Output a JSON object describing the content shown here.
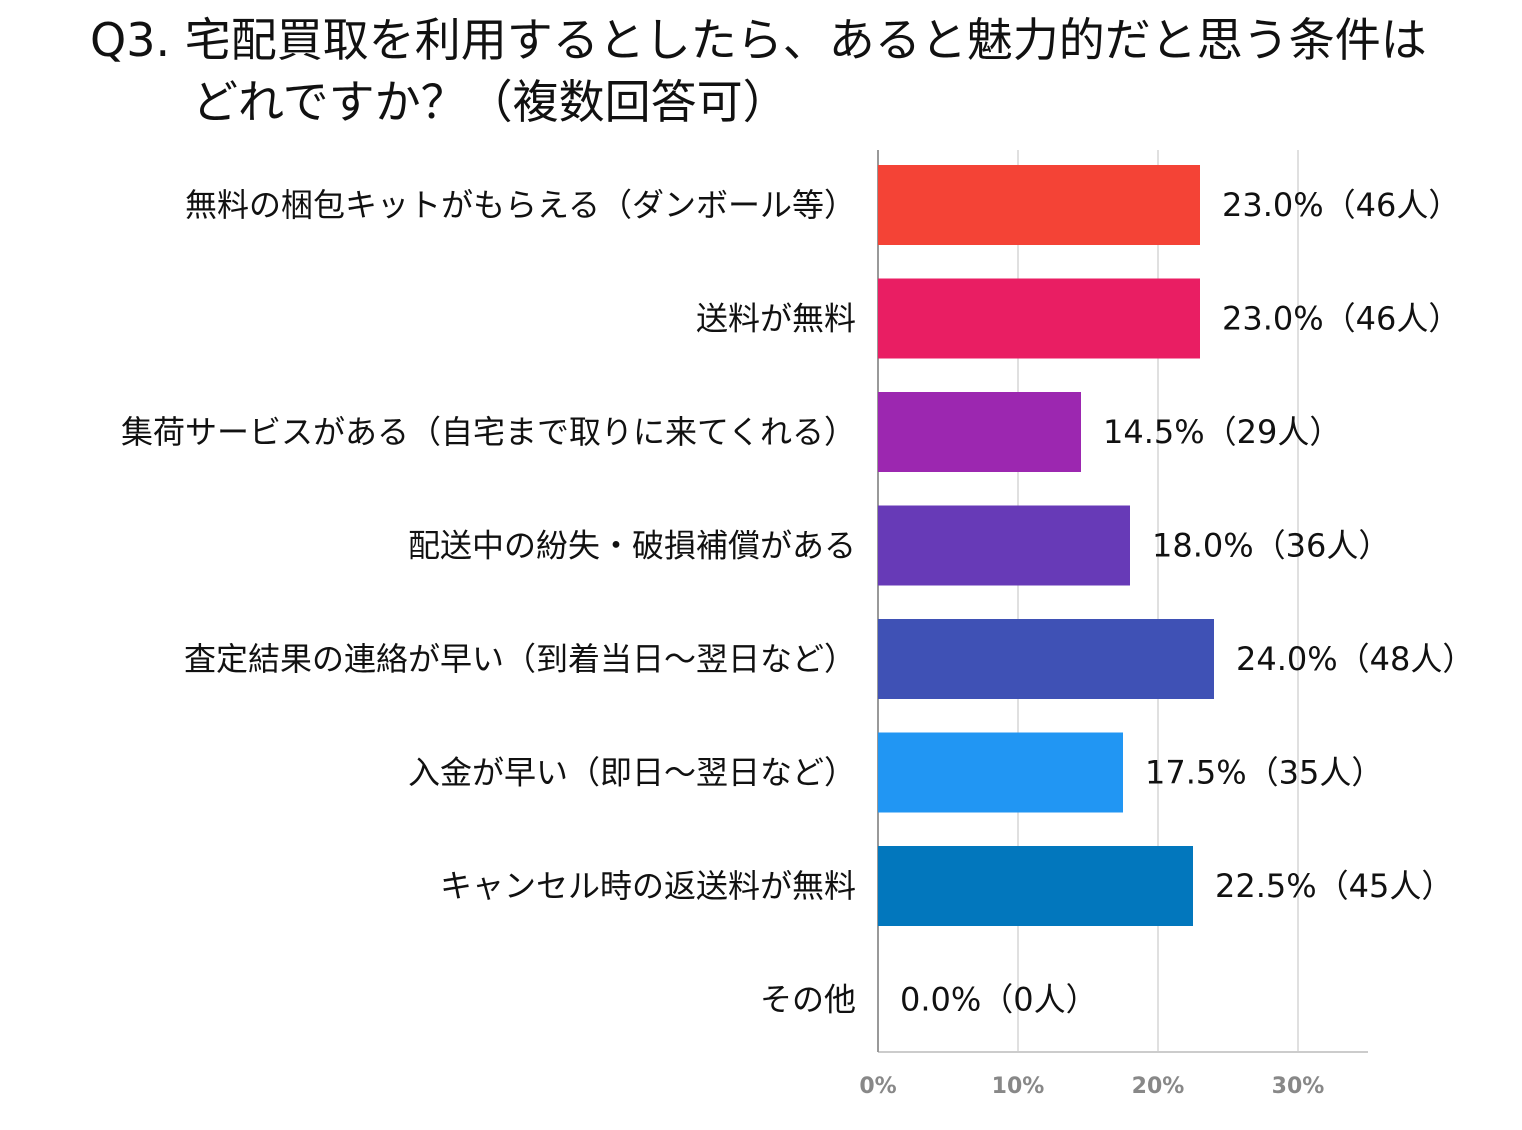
{
  "title_line_1": "Q3. 宅配買取を利用するとしたら、あると魅力的だと思う条件は",
  "title_line_2": "どれですか？（複数回答可）",
  "chart_data": {
    "type": "bar",
    "orientation": "horizontal",
    "title": "Q3. 宅配買取を利用するとしたら、あると魅力的だと思う条件はどれですか？（複数回答可）",
    "categories": [
      "無料の梱包キットがもらえる（ダンボール等）",
      "送料が無料",
      "集荷サービスがある（自宅まで取りに来てくれる）",
      "配送中の紛失・破損補償がある",
      "査定結果の連絡が早い（到着当日～翌日など）",
      "入金が早い（即日～翌日など）",
      "キャンセル時の返送料が無料",
      "その他"
    ],
    "values": [
      23.0,
      23.0,
      14.5,
      18.0,
      24.0,
      17.5,
      22.5,
      0.0
    ],
    "data_labels": [
      "23.0%（46人）",
      "23.0%（46人）",
      "14.5%（29人）",
      "18.0%（36人）",
      "24.0%（48人）",
      "17.5%（35人）",
      "22.5%（45人）",
      "0.0%（0人）"
    ],
    "colors": [
      "#f44336",
      "#e91e63",
      "#9c27b0",
      "#673ab7",
      "#3f51b5",
      "#2196f3",
      "#0277bd",
      "#0277bd"
    ],
    "x_ticks": [
      0,
      10,
      20,
      30
    ],
    "x_tick_labels": [
      "0%",
      "10%",
      "20%",
      "30%"
    ],
    "xlim": [
      0,
      35
    ],
    "grid": true
  }
}
